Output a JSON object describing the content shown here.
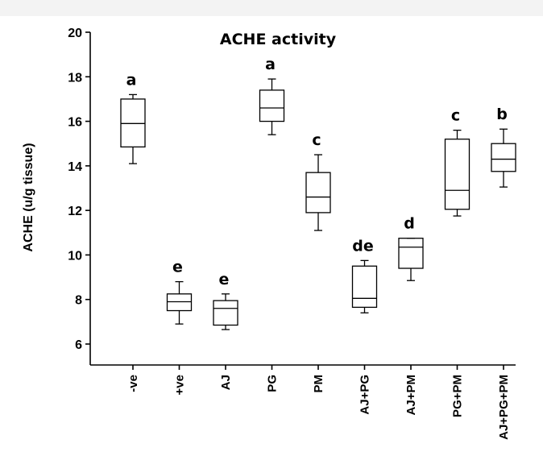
{
  "chart_data": {
    "type": "box",
    "title": "ACHE activity",
    "ylabel": "ACHE (u/g tissue)",
    "xlabel": "",
    "ylim": [
      5,
      20
    ],
    "yticks": [
      6,
      8,
      10,
      12,
      14,
      16,
      18,
      20
    ],
    "categories": [
      "-ve",
      "+ve",
      "AJ",
      "PG",
      "PM",
      "AJ+PG",
      "AJ+PM",
      "PG+PM",
      "AJ+PG+PM"
    ],
    "boxes": [
      {
        "min": 14.1,
        "q1": 14.85,
        "median": 15.9,
        "q3": 17.0,
        "max": 17.2,
        "letter": "a"
      },
      {
        "min": 6.9,
        "q1": 7.5,
        "median": 7.9,
        "q3": 8.25,
        "max": 8.8,
        "letter": "e"
      },
      {
        "min": 6.65,
        "q1": 6.85,
        "median": 7.6,
        "q3": 7.95,
        "max": 8.25,
        "letter": "e"
      },
      {
        "min": 15.4,
        "q1": 16.0,
        "median": 16.6,
        "q3": 17.4,
        "max": 17.9,
        "letter": "a"
      },
      {
        "min": 11.1,
        "q1": 11.9,
        "median": 12.6,
        "q3": 13.7,
        "max": 14.5,
        "letter": "c"
      },
      {
        "min": 7.4,
        "q1": 7.65,
        "median": 8.05,
        "q3": 9.5,
        "max": 9.75,
        "letter": "de"
      },
      {
        "min": 8.85,
        "q1": 9.4,
        "median": 10.35,
        "q3": 10.75,
        "max": 10.75,
        "letter": "d"
      },
      {
        "min": 11.75,
        "q1": 12.05,
        "median": 12.9,
        "q3": 15.2,
        "max": 15.6,
        "letter": "c"
      },
      {
        "min": 13.05,
        "q1": 13.75,
        "median": 14.3,
        "q3": 15.0,
        "max": 15.65,
        "letter": "b"
      }
    ]
  }
}
